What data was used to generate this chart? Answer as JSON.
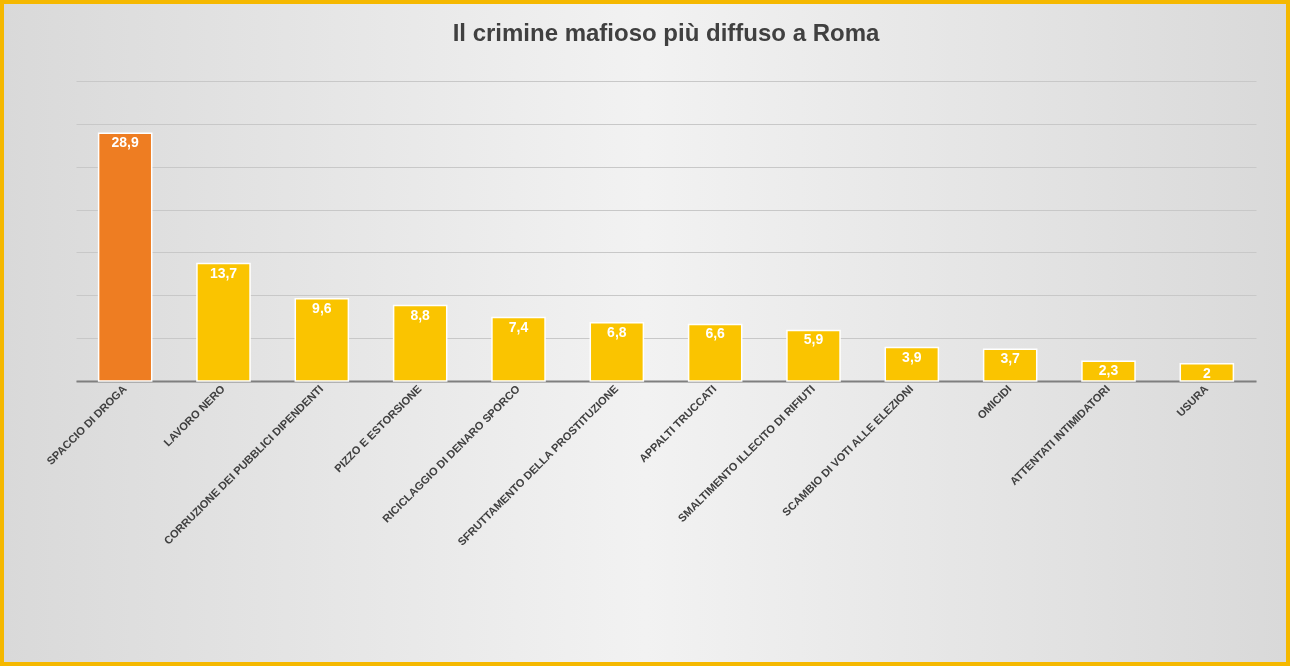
{
  "chart_data": {
    "type": "bar",
    "title": "Il crimine mafioso più diffuso a Roma",
    "categories": [
      "SPACCIO DI DROGA",
      "LAVORO NERO",
      "CORRUZIONE DEI PUBBLICI DIPENDENTI",
      "PIZZO E ESTORSIONE",
      "RICICLAGGIO DI DENARO SPORCO",
      "SFRUTTAMENTO DELLA PROSTITUZIONE",
      "APPALTI TRUCCATI",
      "SMALTIMENTO ILLECITO DI RIFIUTI",
      "SCAMBIO DI VOTI ALLE ELEZIONI",
      "OMICIDI",
      "ATTENTATI INTIMIDATORI",
      "USURA"
    ],
    "values": [
      28.9,
      13.7,
      9.6,
      8.8,
      7.4,
      6.8,
      6.6,
      5.9,
      3.9,
      3.7,
      2.3,
      2
    ],
    "value_labels": [
      "28,9",
      "13,7",
      "9,6",
      "8,8",
      "7,4",
      "6,8",
      "6,6",
      "5,9",
      "3,9",
      "3,7",
      "2,3",
      "2"
    ],
    "colors": [
      "#ee7d22",
      "#fac400",
      "#fac400",
      "#fac400",
      "#fac400",
      "#fac400",
      "#fac400",
      "#fac400",
      "#fac400",
      "#fac400",
      "#fac400",
      "#fac400"
    ],
    "ylim": [
      0,
      35
    ],
    "yticks": [
      {
        "value": 0,
        "label": null
      },
      {
        "value": 5,
        "label": null
      },
      {
        "value": 10,
        "label": null
      },
      {
        "value": 15,
        "label": null
      },
      {
        "value": 20,
        "label": null
      },
      {
        "value": 25,
        "label": null
      },
      {
        "value": 30,
        "label": null
      },
      {
        "value": 35,
        "label": null
      }
    ],
    "grid": "y"
  }
}
